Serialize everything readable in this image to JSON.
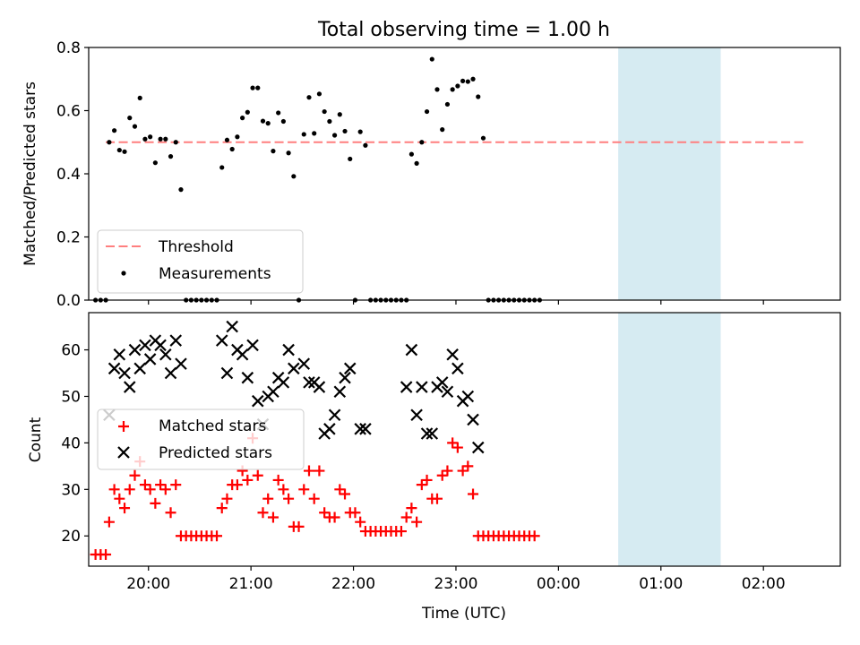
{
  "chart_data": [
    {
      "type": "scatter",
      "title": "Total observing time = 1.00 h",
      "ylabel": "Matched/Predicted stars",
      "xlabel": "",
      "xlim": [
        "19:25",
        "02:45"
      ],
      "ylim": [
        0,
        0.8
      ],
      "yticks": [
        0.0,
        0.2,
        0.4,
        0.6,
        0.8
      ],
      "ytick_labels": [
        "0.0",
        "0.2",
        "0.4",
        "0.6",
        "0.8"
      ],
      "grid": false,
      "legend_position": "lower-left",
      "highlight_span": [
        "00:35",
        "01:35"
      ],
      "threshold": {
        "name": "Threshold",
        "value": 0.5,
        "x_range": [
          "19:35",
          "02:25"
        ],
        "color": "#ff7f7f",
        "style": "dashed"
      },
      "series": [
        {
          "name": "Measurements",
          "marker": "dot",
          "color": "#000000",
          "points": [
            [
              "19:29",
              0.0
            ],
            [
              "19:32",
              0.0
            ],
            [
              "19:35",
              0.0
            ],
            [
              "19:37",
              0.5
            ],
            [
              "19:40",
              0.537
            ],
            [
              "19:43",
              0.475
            ],
            [
              "19:46",
              0.47
            ],
            [
              "19:49",
              0.577
            ],
            [
              "19:52",
              0.55
            ],
            [
              "19:55",
              0.64
            ],
            [
              "19:58",
              0.51
            ],
            [
              "20:01",
              0.517
            ],
            [
              "20:04",
              0.435
            ],
            [
              "20:07",
              0.51
            ],
            [
              "20:10",
              0.51
            ],
            [
              "20:13",
              0.455
            ],
            [
              "20:16",
              0.5
            ],
            [
              "20:19",
              0.35
            ],
            [
              "20:22",
              0.0
            ],
            [
              "20:25",
              0.0
            ],
            [
              "20:28",
              0.0
            ],
            [
              "20:31",
              0.0
            ],
            [
              "20:34",
              0.0
            ],
            [
              "20:37",
              0.0
            ],
            [
              "20:40",
              0.0
            ],
            [
              "20:43",
              0.42
            ],
            [
              "20:46",
              0.507
            ],
            [
              "20:49",
              0.478
            ],
            [
              "20:52",
              0.517
            ],
            [
              "20:55",
              0.577
            ],
            [
              "20:58",
              0.595
            ],
            [
              "21:01",
              0.672
            ],
            [
              "21:04",
              0.672
            ],
            [
              "21:07",
              0.567
            ],
            [
              "21:10",
              0.56
            ],
            [
              "21:13",
              0.472
            ],
            [
              "21:16",
              0.593
            ],
            [
              "21:19",
              0.566
            ],
            [
              "21:22",
              0.466
            ],
            [
              "21:25",
              0.392
            ],
            [
              "21:28",
              0.0
            ],
            [
              "21:31",
              0.525
            ],
            [
              "21:34",
              0.642
            ],
            [
              "21:37",
              0.528
            ],
            [
              "21:40",
              0.653
            ],
            [
              "21:43",
              0.597
            ],
            [
              "21:46",
              0.566
            ],
            [
              "21:49",
              0.522
            ],
            [
              "21:52",
              0.588
            ],
            [
              "21:55",
              0.535
            ],
            [
              "21:58",
              0.447
            ],
            [
              "22:01",
              0.0
            ],
            [
              "22:04",
              0.533
            ],
            [
              "22:07",
              0.49
            ],
            [
              "22:10",
              0.0
            ],
            [
              "22:13",
              0.0
            ],
            [
              "22:16",
              0.0
            ],
            [
              "22:19",
              0.0
            ],
            [
              "22:22",
              0.0
            ],
            [
              "22:25",
              0.0
            ],
            [
              "22:28",
              0.0
            ],
            [
              "22:31",
              0.0
            ],
            [
              "22:34",
              0.462
            ],
            [
              "22:37",
              0.433
            ],
            [
              "22:40",
              0.5
            ],
            [
              "22:43",
              0.597
            ],
            [
              "22:46",
              0.763
            ],
            [
              "22:49",
              0.667
            ],
            [
              "22:52",
              0.54
            ],
            [
              "22:55",
              0.62
            ],
            [
              "22:58",
              0.667
            ],
            [
              "23:01",
              0.678
            ],
            [
              "23:04",
              0.694
            ],
            [
              "23:07",
              0.692
            ],
            [
              "23:10",
              0.7
            ],
            [
              "23:13",
              0.644
            ],
            [
              "23:16",
              0.513
            ],
            [
              "23:19",
              0.0
            ],
            [
              "23:22",
              0.0
            ],
            [
              "23:25",
              0.0
            ],
            [
              "23:28",
              0.0
            ],
            [
              "23:31",
              0.0
            ],
            [
              "23:34",
              0.0
            ],
            [
              "23:37",
              0.0
            ],
            [
              "23:40",
              0.0
            ],
            [
              "23:43",
              0.0
            ],
            [
              "23:46",
              0.0
            ],
            [
              "23:49",
              0.0
            ]
          ]
        }
      ]
    },
    {
      "type": "scatter",
      "title": "",
      "ylabel": "Count",
      "xlabel": "Time (UTC)",
      "xlim": [
        "19:25",
        "02:45"
      ],
      "ylim": [
        13.5,
        68
      ],
      "yticks": [
        20,
        30,
        40,
        50,
        60
      ],
      "ytick_labels": [
        "20",
        "30",
        "40",
        "50",
        "60"
      ],
      "xticks": [
        "20:00",
        "21:00",
        "22:00",
        "23:00",
        "00:00",
        "01:00",
        "02:00"
      ],
      "grid": false,
      "legend_position": "center-left",
      "highlight_span": [
        "00:35",
        "01:35"
      ],
      "series": [
        {
          "name": "Matched stars",
          "marker": "plus",
          "color": "#ff0000",
          "values": [
            16,
            16,
            16,
            23,
            30,
            28,
            26,
            30,
            33,
            36,
            31,
            30,
            27,
            31,
            30,
            25,
            31,
            20,
            20,
            20,
            20,
            20,
            20,
            20,
            20,
            26,
            28,
            31,
            31,
            34,
            32,
            41,
            33,
            25,
            28,
            24,
            32,
            30,
            28,
            22,
            22,
            30,
            34,
            28,
            34,
            25,
            24,
            24,
            30,
            29,
            25,
            25,
            23,
            21,
            21,
            21,
            21,
            21,
            21,
            21,
            21,
            24,
            26,
            23,
            31,
            32,
            28,
            28,
            33,
            34,
            40,
            39,
            34,
            35,
            29,
            20,
            20,
            20,
            20,
            20,
            20,
            20,
            20,
            20,
            20,
            20,
            20
          ]
        },
        {
          "name": "Predicted stars",
          "marker": "x",
          "color": "#000000",
          "values": [
            null,
            null,
            null,
            46,
            56,
            59,
            55,
            52,
            60,
            56,
            61,
            58,
            62,
            61,
            59,
            55,
            62,
            57,
            null,
            null,
            null,
            null,
            null,
            null,
            null,
            62,
            55,
            65,
            60,
            59,
            54,
            61,
            49,
            44,
            50,
            51,
            54,
            53,
            60,
            56,
            null,
            57,
            53,
            53,
            52,
            42,
            43,
            46,
            51,
            54,
            56,
            null,
            43,
            43,
            null,
            null,
            null,
            null,
            null,
            null,
            null,
            52,
            60,
            46,
            52,
            42,
            42,
            52,
            53,
            51,
            59,
            56,
            49,
            50,
            45,
            39,
            null,
            null,
            null,
            null,
            null,
            null,
            null,
            null,
            null,
            null,
            null,
            null
          ]
        }
      ]
    }
  ]
}
